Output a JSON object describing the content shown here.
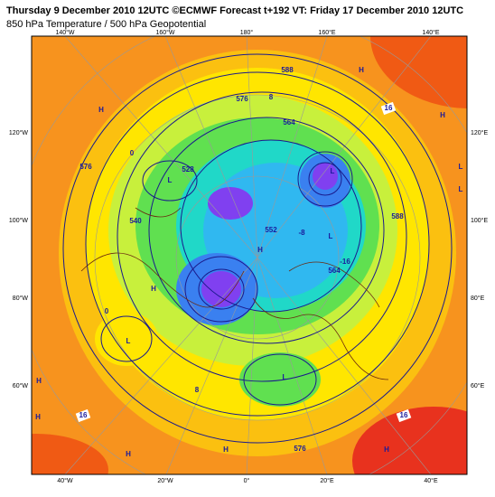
{
  "header": {
    "line1": "Thursday 9 December 2010 12UTC ©ECMWF Forecast t+192 VT: Friday 17 December 2010 12UTC",
    "line2": "850 hPa Temperature / 500 hPa Geopotential"
  },
  "frame_labels": {
    "top": [
      "140°W",
      "160°W",
      "180°",
      "160°E",
      "140°E"
    ],
    "bottom": [
      "40°W",
      "20°W",
      "0°",
      "20°E",
      "40°E"
    ],
    "left": [
      "120°W",
      "100°W",
      "80°W",
      "60°W"
    ],
    "right": [
      "120°E",
      "100°E",
      "80°E",
      "60°E"
    ]
  },
  "map_labels": [
    "H",
    "L",
    "H",
    "L",
    "H",
    "H",
    "L",
    "L",
    "H",
    "H",
    "H",
    "H",
    "H",
    "L",
    "H",
    "L",
    "L",
    "588",
    "576",
    "564",
    "552",
    "540",
    "528",
    "576",
    "588",
    "564",
    "576",
    "16",
    "16",
    "16",
    "8",
    "0",
    "-8",
    "-16",
    "0",
    "8"
  ]
}
